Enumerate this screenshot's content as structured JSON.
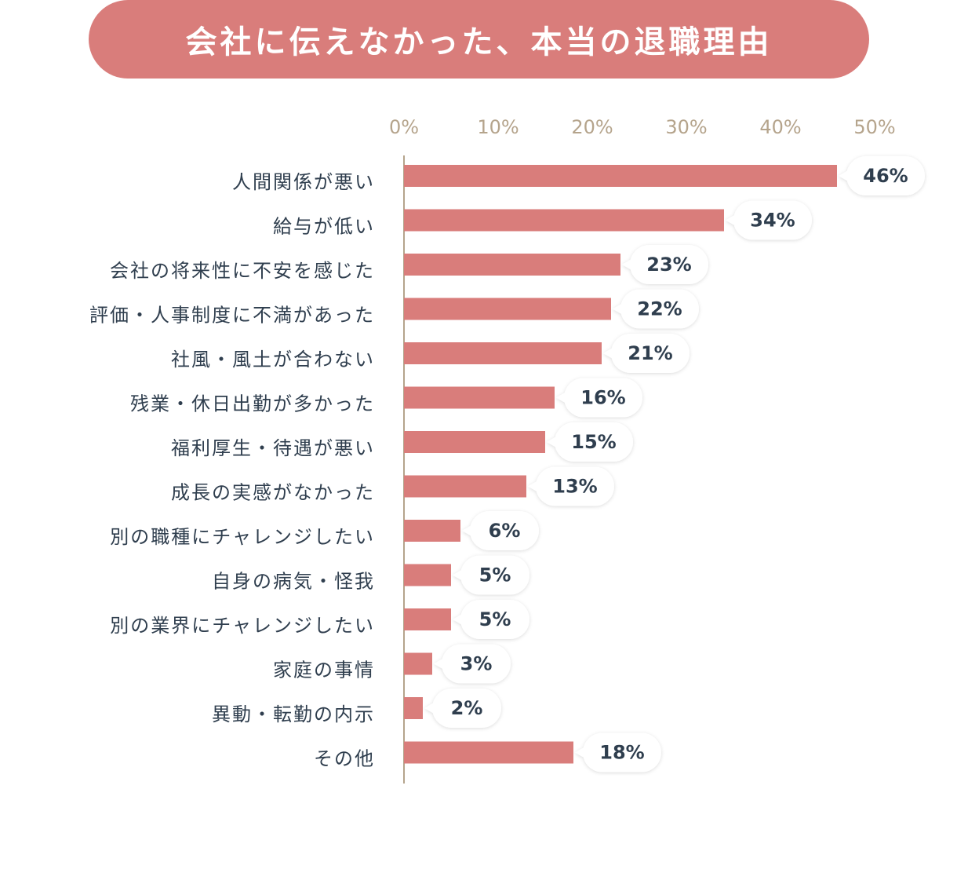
{
  "colors": {
    "accent": "#d97d7b",
    "axis": "#b5a48c",
    "text": "#2f3e4e",
    "label_bg": "#ffffff"
  },
  "chart_data": {
    "type": "bar",
    "orientation": "horizontal",
    "title": "会社に伝えなかった、本当の退職理由",
    "xlabel": "",
    "ylabel": "",
    "xlim": [
      0,
      50
    ],
    "ticks": [
      "0%",
      "10%",
      "20%",
      "30%",
      "40%",
      "50%"
    ],
    "tick_values": [
      0,
      10,
      20,
      30,
      40,
      50
    ],
    "unit": "%",
    "categories": [
      "人間関係が悪い",
      "給与が低い",
      "会社の将来性に不安を感じた",
      "評価・人事制度に不満があった",
      "社風・風土が合わない",
      "残業・休日出勤が多かった",
      "福利厚生・待遇が悪い",
      "成長の実感がなかった",
      "別の職種にチャレンジしたい",
      "自身の病気・怪我",
      "別の業界にチャレンジしたい",
      "家庭の事情",
      "異動・転勤の内示",
      "その他"
    ],
    "values": [
      46,
      34,
      23,
      22,
      21,
      16,
      15,
      13,
      6,
      5,
      5,
      3,
      2,
      18
    ],
    "value_labels": [
      "46%",
      "34%",
      "23%",
      "22%",
      "21%",
      "16%",
      "15%",
      "13%",
      "6%",
      "5%",
      "5%",
      "3%",
      "2%",
      "18%"
    ],
    "grid": false,
    "legend": "none",
    "axis_position": "top"
  }
}
